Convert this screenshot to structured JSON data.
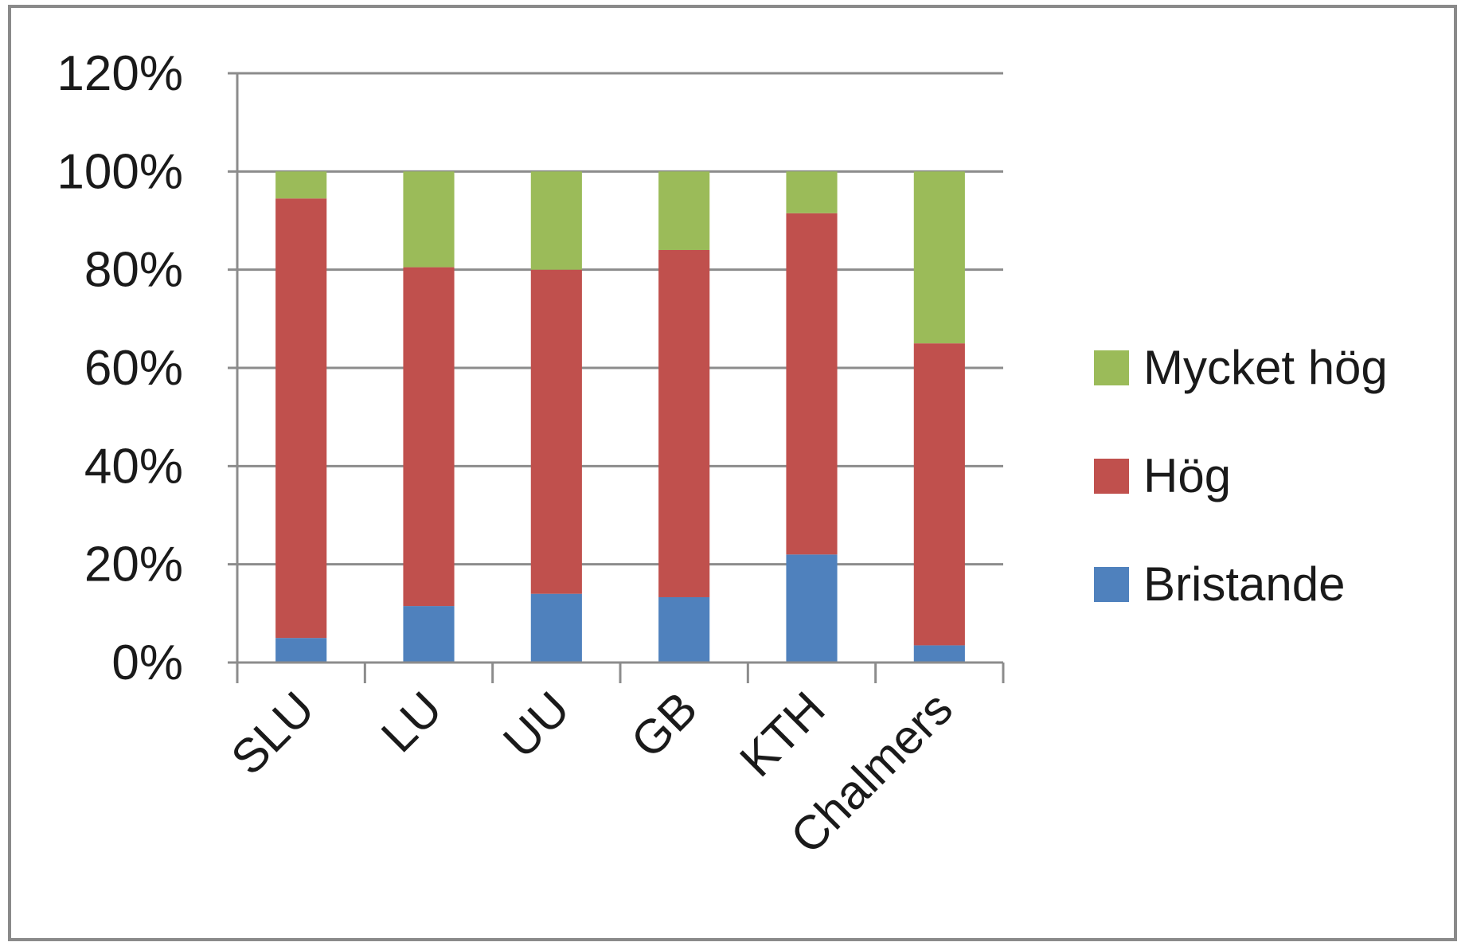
{
  "chart_data": {
    "type": "bar",
    "stacked": true,
    "categories": [
      "SLU",
      "LU",
      "UU",
      "GB",
      "KTH",
      "Chalmers"
    ],
    "series": [
      {
        "name": "Bristande",
        "color": "#4f81bd",
        "values": [
          5,
          11.5,
          14,
          13.3,
          22,
          3.5
        ]
      },
      {
        "name": "Hög",
        "color": "#c0504d",
        "values": [
          89.5,
          69,
          66,
          70.7,
          69.5,
          61.5
        ]
      },
      {
        "name": "Mycket hög",
        "color": "#9bbb59",
        "values": [
          5.5,
          19.5,
          20,
          16,
          8.5,
          35
        ]
      }
    ],
    "y_ticks": [
      "0%",
      "20%",
      "40%",
      "60%",
      "80%",
      "100%",
      "120%"
    ],
    "ylim": [
      0,
      120
    ],
    "grid": true,
    "legend_position": "right",
    "legend_order": [
      "Mycket hög",
      "Hög",
      "Bristande"
    ]
  }
}
